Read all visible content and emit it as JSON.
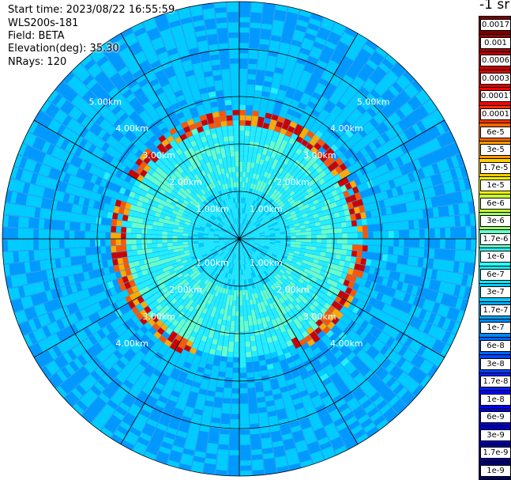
{
  "header": {
    "start_time": "Start time: 2023/08/22 16:55:59",
    "device": "WLS200s-181",
    "field": "Field: BETA",
    "elevation": "Elevation(deg): 35.30",
    "nrays": "NRays: 120"
  },
  "chart_data": {
    "type": "heatmap",
    "projection": "polar",
    "field": "BETA",
    "n_rays": 120,
    "elevation_deg": 35.3,
    "max_range_km": 5.0,
    "range_rings_km": [
      1,
      2,
      3,
      4,
      5
    ],
    "ring_labels": [
      "1.00km",
      "2.00km",
      "3.00km",
      "4.00km",
      "5.00km"
    ],
    "spokes_deg": [
      0,
      30,
      60,
      90,
      120,
      150,
      180,
      210,
      240,
      270,
      300,
      330
    ],
    "high_beta_ring_km": 2.55,
    "colorbar": {
      "unit_label": "-1 sr",
      "tick_labels": [
        "0.0017",
        "0.001",
        "0.0006",
        "0.0003",
        "0.00017",
        "0.0001",
        "6e-5",
        "3e-5",
        "1.7e-5",
        "1e-5",
        "6e-6",
        "3e-6",
        "1.7e-6",
        "1e-6",
        "6e-7",
        "3e-7",
        "1.7e-7",
        "1e-7",
        "6e-8",
        "3e-8",
        "1.7e-8",
        "1e-8",
        "6e-9",
        "3e-9",
        "1.7e-9",
        "1e-9"
      ],
      "colors": [
        "#7a0000",
        "#a00000",
        "#c00000",
        "#e00000",
        "#ff0000",
        "#ff3300",
        "#ff6600",
        "#ff9900",
        "#ffcc00",
        "#ffff00",
        "#ccff33",
        "#99ff66",
        "#66ffcc",
        "#33ffff",
        "#00eeff",
        "#00ccff",
        "#00aaff",
        "#0088ff",
        "#0066ff",
        "#0044ff",
        "#0022ff",
        "#0000ff",
        "#0000dd",
        "#0000bb",
        "#000099",
        "#000066"
      ]
    }
  }
}
